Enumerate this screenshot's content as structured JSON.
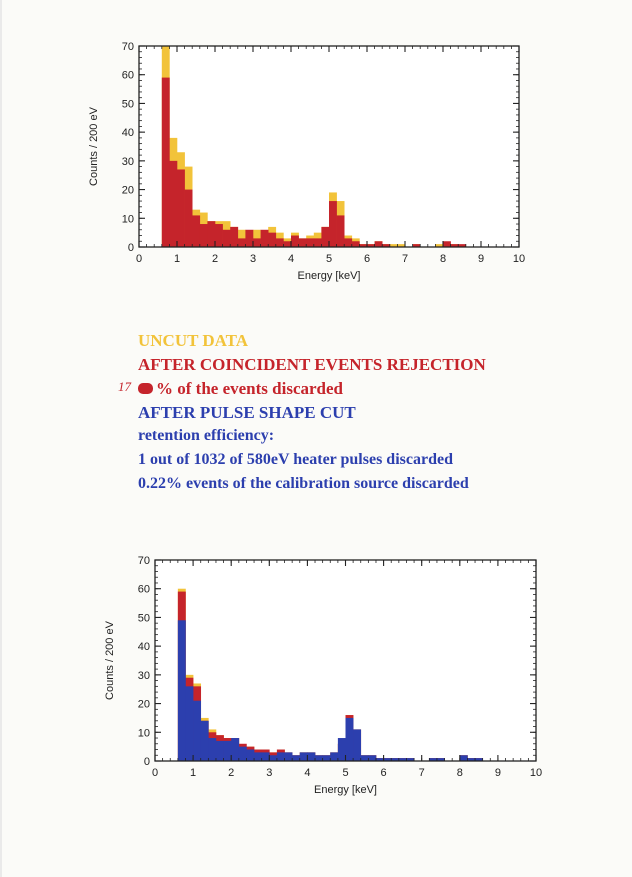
{
  "legend": {
    "uncut": "UNCUT DATA",
    "coincident": "AFTER COINCIDENT EVENTS REJECTION",
    "discard_note_hand": "17",
    "discard_note": "% of the events discarded",
    "pulse_shape": "AFTER PULSE SHAPE CUT",
    "retention": "retention efficiency:",
    "heater": "1 out of 1032 of 580eV heater pulses discarded",
    "calibration": "0.22% events of the calibration source discarded"
  },
  "colors": {
    "uncut": "#f2c33a",
    "coincident": "#c5242b",
    "pulse_shape": "#2c3fae",
    "axes": "#222222"
  },
  "chart_data": [
    {
      "type": "bar",
      "xlabel": "Energy [keV]",
      "ylabel": "Counts / 200 eV",
      "xlim": [
        0,
        10
      ],
      "ylim": [
        0,
        70
      ],
      "xticks": [
        0,
        1,
        2,
        3,
        4,
        5,
        6,
        7,
        8,
        9,
        10
      ],
      "yticks": [
        0,
        10,
        20,
        30,
        40,
        50,
        60,
        70
      ],
      "bin_width": 0.2,
      "bin_start": 0.6,
      "series": [
        {
          "name": "UNCUT DATA",
          "values": [
            70,
            38,
            33,
            28,
            13,
            12,
            9,
            9,
            9,
            7,
            6,
            5,
            6,
            4,
            7,
            5,
            3,
            5,
            3,
            4,
            5,
            7,
            19,
            16,
            4,
            3,
            1,
            1,
            2,
            1,
            1,
            1,
            0,
            1,
            0,
            0,
            1,
            1,
            1,
            0,
            0,
            0,
            0,
            0,
            0,
            0,
            0
          ]
        },
        {
          "name": "AFTER COINCIDENT EVENTS REJECTION",
          "values": [
            59,
            30,
            27,
            20,
            11,
            8,
            9,
            8,
            6,
            7,
            3,
            6,
            3,
            6,
            5,
            3,
            2,
            4,
            3,
            3,
            3,
            7,
            16,
            11,
            3,
            2,
            1,
            1,
            2,
            1,
            0,
            0,
            0,
            1,
            0,
            0,
            0,
            2,
            1,
            1,
            0,
            0,
            0,
            0,
            0,
            0,
            0
          ]
        }
      ]
    },
    {
      "type": "bar",
      "xlabel": "Energy [keV]",
      "ylabel": "Counts / 200 eV",
      "xlim": [
        0,
        10
      ],
      "ylim": [
        0,
        70
      ],
      "xticks": [
        0,
        1,
        2,
        3,
        4,
        5,
        6,
        7,
        8,
        9,
        10
      ],
      "yticks": [
        0,
        10,
        20,
        30,
        40,
        50,
        60,
        70
      ],
      "bin_width": 0.2,
      "bin_start": 0.6,
      "series": [
        {
          "name": "UNCUT DATA",
          "values": [
            60,
            30,
            27,
            15,
            11,
            9,
            8,
            8,
            5,
            5,
            4,
            4,
            3,
            4,
            3,
            2,
            3,
            3,
            2,
            2,
            3,
            6,
            16,
            11,
            2,
            2,
            1,
            1,
            1,
            1,
            1,
            0,
            0,
            1,
            1,
            0,
            0,
            2,
            1,
            1,
            0,
            0,
            0,
            0,
            0,
            0,
            0
          ]
        },
        {
          "name": "AFTER COINCIDENT EVENTS REJECTION",
          "values": [
            59,
            29,
            26,
            14,
            10,
            9,
            8,
            8,
            6,
            5,
            4,
            4,
            3,
            4,
            3,
            2,
            3,
            3,
            2,
            2,
            3,
            6,
            16,
            11,
            2,
            2,
            1,
            1,
            1,
            1,
            1,
            0,
            0,
            1,
            1,
            0,
            0,
            2,
            1,
            1,
            0,
            0,
            0,
            0,
            0,
            0,
            0
          ]
        },
        {
          "name": "AFTER PULSE SHAPE CUT",
          "values": [
            49,
            26,
            21,
            14,
            8,
            7,
            7,
            8,
            5,
            4,
            3,
            3,
            2,
            3,
            3,
            2,
            3,
            3,
            2,
            2,
            3,
            8,
            15,
            11,
            2,
            2,
            1,
            1,
            1,
            1,
            1,
            0,
            0,
            1,
            1,
            0,
            0,
            2,
            1,
            1,
            0,
            0,
            0,
            0,
            0,
            0,
            0
          ]
        }
      ]
    }
  ]
}
